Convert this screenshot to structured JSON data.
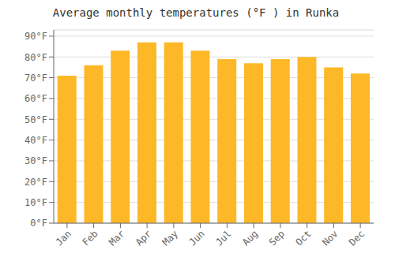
{
  "chart_data": {
    "type": "bar",
    "title": "Average monthly temperatures (°F ) in Runka",
    "categories": [
      "Jan",
      "Feb",
      "Mar",
      "Apr",
      "May",
      "Jun",
      "Jul",
      "Aug",
      "Sep",
      "Oct",
      "Nov",
      "Dec"
    ],
    "values": [
      71,
      76,
      83,
      87,
      87,
      83,
      79,
      77,
      79,
      80,
      75,
      72
    ],
    "color": "#FDB827",
    "ylim": [
      0,
      93
    ],
    "yticks": [
      {
        "value": 0,
        "label": "0°F"
      },
      {
        "value": 10,
        "label": "10°F"
      },
      {
        "value": 20,
        "label": "20°F"
      },
      {
        "value": 30,
        "label": "30°F"
      },
      {
        "value": 40,
        "label": "40°F"
      },
      {
        "value": 50,
        "label": "50°F"
      },
      {
        "value": 60,
        "label": "60°F"
      },
      {
        "value": 70,
        "label": "70°F"
      },
      {
        "value": 80,
        "label": "80°F"
      },
      {
        "value": 90,
        "label": "90°F"
      }
    ],
    "grid": true
  }
}
